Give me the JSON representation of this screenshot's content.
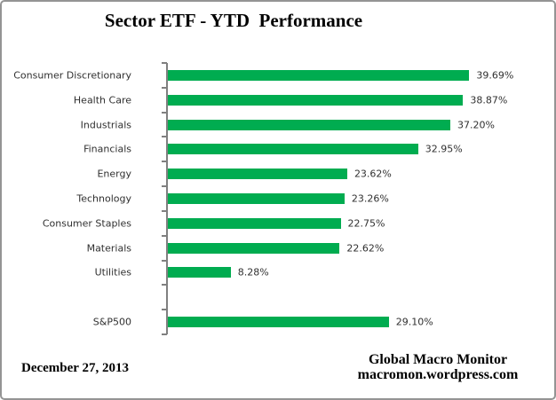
{
  "chart_data": {
    "type": "bar",
    "orientation": "horizontal",
    "title": "Sector ETF - YTD  Performance",
    "categories": [
      "Consumer Discretionary",
      "Health Care",
      "Industrials",
      "Financials",
      "Energy",
      "Technology",
      "Consumer Staples",
      "Materials",
      "Utilities",
      "",
      "S&P500"
    ],
    "values": [
      39.69,
      38.87,
      37.2,
      32.95,
      23.62,
      23.26,
      22.75,
      22.62,
      8.28,
      null,
      29.1
    ],
    "value_labels": [
      "39.69%",
      "38.87%",
      "37.20%",
      "32.95%",
      "23.62%",
      "23.26%",
      "22.75%",
      "22.62%",
      "8.28%",
      "",
      "29.10%"
    ],
    "xlim": [
      0,
      45
    ],
    "grid": false,
    "legend": false,
    "bar_color": "#00AC50",
    "axis_color": "#808080",
    "label_color": "#303030"
  },
  "footer": {
    "date": "December 27, 2013",
    "brand_line1": "Global Macro Monitor",
    "brand_line2": "macromon.wordpress.com"
  }
}
